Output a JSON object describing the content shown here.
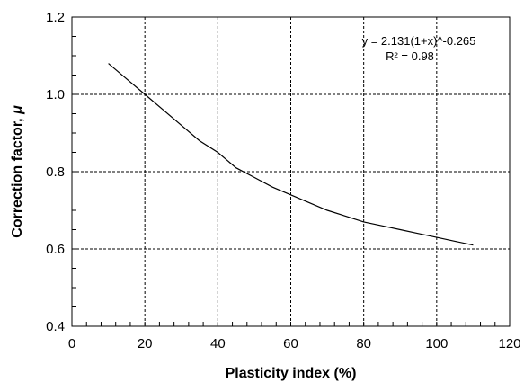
{
  "chart_data": {
    "type": "line",
    "title": "",
    "xlabel": "Plasticity index (%)",
    "ylabel_text": "Correction factor, ",
    "ylabel_symbol": "μ",
    "xlim": [
      0,
      120
    ],
    "ylim": [
      0.4,
      1.2
    ],
    "x_ticks": [
      0,
      20,
      40,
      60,
      80,
      100,
      120
    ],
    "y_ticks": [
      0.4,
      0.6,
      0.8,
      1.0,
      1.2
    ],
    "x_tick_labels": [
      "0",
      "20",
      "40",
      "60",
      "80",
      "100",
      "120"
    ],
    "y_tick_labels": [
      "0.4",
      "0.6",
      "0.8",
      "1.0",
      "1.2"
    ],
    "grid": true,
    "grid_style": "dashed",
    "series": [
      {
        "equation": "y = 2.131(1+x)^-0.265",
        "x": [
          10,
          15,
          20,
          25,
          30,
          35,
          40,
          45,
          50,
          55,
          60,
          65,
          70,
          75,
          80,
          85,
          90,
          95,
          100,
          105,
          110
        ],
        "y": [
          1.08,
          1.04,
          1.0,
          0.96,
          0.92,
          0.88,
          0.85,
          0.81,
          0.785,
          0.76,
          0.74,
          0.72,
          0.7,
          0.685,
          0.67,
          0.66,
          0.65,
          0.64,
          0.63,
          0.62,
          0.61
        ]
      }
    ],
    "annotations": [
      {
        "text": "y = 2.131(1+x)^-0.265"
      },
      {
        "text": "R² = 0.98"
      }
    ]
  }
}
